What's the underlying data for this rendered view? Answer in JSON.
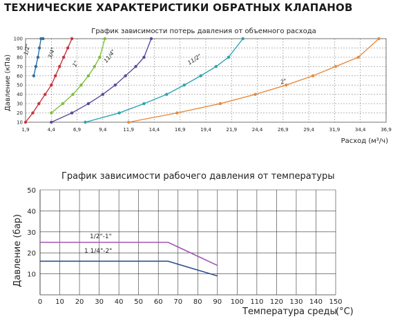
{
  "page_title": "ТЕХНИЧЕСКИЕ ХАРАКТЕРИСТИКИ ОБРАТНЫХ КЛАПАНОВ",
  "chart_data": [
    {
      "type": "line",
      "title": "График зависимости потерь давления от объемного расхода",
      "xlabel": "Расход (м³/ч)",
      "ylabel": "Давление (кПа)",
      "xlim": [
        1.9,
        36.9
      ],
      "ylim": [
        10,
        100
      ],
      "x_ticks": [
        "1,9",
        "4,4",
        "6,9",
        "9,4",
        "11,9",
        "14,4",
        "16,9",
        "19,4",
        "21,9",
        "24,4",
        "26,9",
        "29,4",
        "31,9",
        "34,4",
        "36,9"
      ],
      "y_ticks": [
        "10",
        "20",
        "30",
        "40",
        "50",
        "60",
        "70",
        "80",
        "90",
        "100"
      ],
      "grid": true,
      "series": [
        {
          "name": "1/2\"",
          "color": "#2e6da4",
          "x": [
            2.7,
            2.9,
            3.1,
            3.25,
            3.4,
            3.6
          ],
          "y": [
            60,
            70,
            80,
            90,
            100,
            100
          ]
        },
        {
          "name": "3/4\"",
          "color": "#c8323c",
          "x": [
            1.9,
            2.6,
            3.2,
            3.8,
            4.4,
            4.8,
            5.2,
            5.6,
            6.0,
            6.4
          ],
          "y": [
            10,
            20,
            30,
            40,
            50,
            60,
            70,
            80,
            90,
            100
          ]
        },
        {
          "name": "1\"",
          "color": "#7dbe3c",
          "x": [
            4.4,
            5.5,
            6.5,
            7.3,
            8.0,
            8.6,
            9.1,
            9.6
          ],
          "y": [
            20,
            30,
            40,
            50,
            60,
            70,
            80,
            100
          ]
        },
        {
          "name": "11/4\"",
          "color": "#5a4a9c",
          "x": [
            4.4,
            6.4,
            8.0,
            9.4,
            10.6,
            11.6,
            12.6,
            13.4,
            14.1
          ],
          "y": [
            10,
            20,
            30,
            40,
            50,
            60,
            70,
            80,
            100
          ]
        },
        {
          "name": "11/2\"",
          "color": "#2aa3b0",
          "x": [
            7.7,
            11.0,
            13.4,
            15.6,
            17.3,
            18.9,
            20.4,
            21.6,
            23.0
          ],
          "y": [
            10,
            20,
            30,
            40,
            50,
            60,
            70,
            80,
            100
          ]
        },
        {
          "name": "2\"",
          "color": "#e88a3c",
          "x": [
            11.9,
            16.6,
            20.8,
            24.2,
            27.2,
            29.8,
            32.0,
            34.2,
            36.2
          ],
          "y": [
            10,
            20,
            30,
            40,
            50,
            60,
            70,
            80,
            100
          ]
        }
      ]
    },
    {
      "type": "line",
      "title": "График зависимости рабочего давления от температуры",
      "xlabel": "Температура среды",
      "xlabel_unit": "(°C)",
      "ylabel": "Давление (бар)",
      "xlim": [
        0,
        150
      ],
      "ylim": [
        0,
        50
      ],
      "x_ticks": [
        "0",
        "10",
        "20",
        "30",
        "40",
        "50",
        "60",
        "70",
        "80",
        "90",
        "100",
        "110",
        "120",
        "130",
        "140",
        "150"
      ],
      "y_ticks": [
        "10",
        "20",
        "30",
        "40",
        "50"
      ],
      "grid": true,
      "series": [
        {
          "name": "1/2\"-1\"",
          "color": "#a056b4",
          "x": [
            0,
            65,
            90
          ],
          "y": [
            25,
            25,
            14
          ]
        },
        {
          "name": "1 1/4\"-2\"",
          "color": "#2f4f8f",
          "x": [
            0,
            65,
            90
          ],
          "y": [
            16,
            16,
            9
          ]
        }
      ]
    }
  ]
}
